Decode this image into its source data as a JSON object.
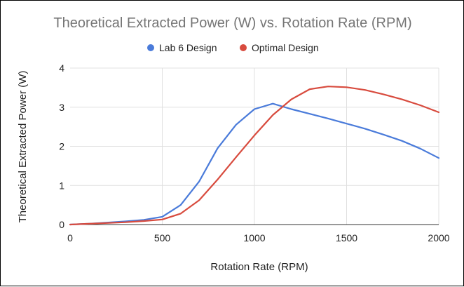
{
  "chart_data": {
    "type": "line",
    "title": "Theoretical Extracted Power (W) vs. Rotation Rate (RPM)",
    "xlabel": "Rotation Rate (RPM)",
    "ylabel": "Theoretical Extracted Power (W)",
    "xlim": [
      0,
      2000
    ],
    "ylim": [
      0,
      4
    ],
    "xticks": [
      "0",
      "500",
      "1000",
      "1500",
      "2000"
    ],
    "yticks": [
      "0",
      "1",
      "2",
      "3",
      "4"
    ],
    "grid": true,
    "legend_position": "top",
    "series": [
      {
        "name": "Lab 6 Design",
        "color": "#4A7BDA",
        "points": [
          [
            0,
            0
          ],
          [
            100,
            0.02
          ],
          [
            200,
            0.05
          ],
          [
            300,
            0.08
          ],
          [
            400,
            0.12
          ],
          [
            500,
            0.2
          ],
          [
            600,
            0.5
          ],
          [
            700,
            1.1
          ],
          [
            800,
            1.95
          ],
          [
            900,
            2.55
          ],
          [
            1000,
            2.95
          ],
          [
            1100,
            3.09
          ],
          [
            1200,
            2.95
          ],
          [
            1300,
            2.83
          ],
          [
            1400,
            2.71
          ],
          [
            1500,
            2.58
          ],
          [
            1600,
            2.45
          ],
          [
            1700,
            2.3
          ],
          [
            1800,
            2.14
          ],
          [
            1900,
            1.94
          ],
          [
            2000,
            1.7
          ]
        ]
      },
      {
        "name": "Optimal Design",
        "color": "#D84B3E",
        "points": [
          [
            0,
            0
          ],
          [
            100,
            0.02
          ],
          [
            200,
            0.04
          ],
          [
            300,
            0.06
          ],
          [
            400,
            0.09
          ],
          [
            500,
            0.13
          ],
          [
            600,
            0.28
          ],
          [
            700,
            0.62
          ],
          [
            800,
            1.15
          ],
          [
            900,
            1.72
          ],
          [
            1000,
            2.28
          ],
          [
            1100,
            2.8
          ],
          [
            1200,
            3.2
          ],
          [
            1300,
            3.46
          ],
          [
            1400,
            3.53
          ],
          [
            1500,
            3.51
          ],
          [
            1600,
            3.44
          ],
          [
            1700,
            3.33
          ],
          [
            1800,
            3.2
          ],
          [
            1900,
            3.05
          ],
          [
            2000,
            2.87
          ]
        ]
      }
    ]
  }
}
